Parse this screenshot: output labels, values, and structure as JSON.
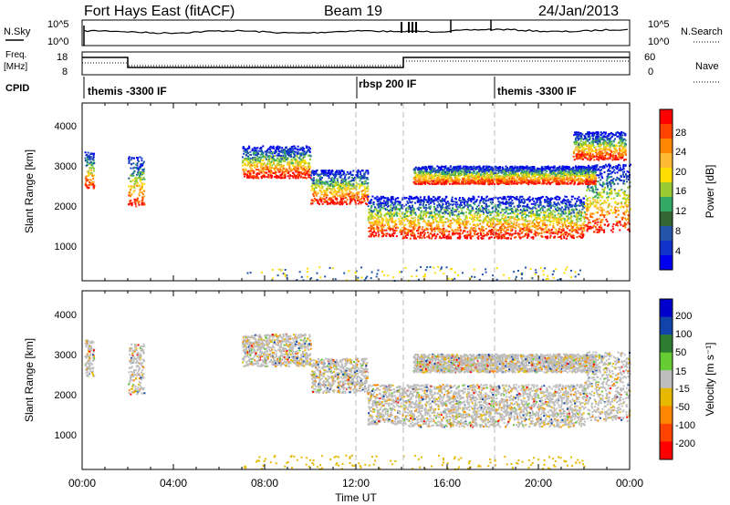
{
  "header": {
    "title": "Fort Hays East (fitACF)",
    "beam": "Beam 19",
    "date": "24/Jan/2013"
  },
  "top_panels": {
    "nsky_label": "N.Sky",
    "nsky_ticks": [
      "10^5",
      "10^0"
    ],
    "nsearch_label": "N.Search",
    "nsearch_ticks": [
      "10^5",
      "10^0"
    ],
    "freq_label_1": "Freq.",
    "freq_label_2": "[MHz]",
    "freq_ticks": [
      "18",
      "8"
    ],
    "nave_label": "Nave",
    "nave_ticks": [
      "60",
      "0"
    ],
    "cpid_label": "CPID",
    "cpid_segments": [
      "themis -3300 IF",
      "rbsp 200 IF",
      "themis -3300 IF"
    ]
  },
  "x_axis": {
    "label": "Time UT",
    "ticks": [
      "00:00",
      "04:00",
      "08:00",
      "12:00",
      "16:00",
      "20:00",
      "00:00"
    ]
  },
  "power_colorbar": {
    "label": "Power [dB]",
    "ticks": [
      "28",
      "24",
      "20",
      "16",
      "12",
      "8",
      "4"
    ],
    "colors": [
      "#ff0000",
      "#ff4400",
      "#ff8800",
      "#ffbb33",
      "#ffdd00",
      "#99cc33",
      "#33aa66",
      "#336633",
      "#2255aa",
      "#1133cc",
      "#0000ee"
    ]
  },
  "velocity_colorbar": {
    "label": "Velocity [m s⁻¹]",
    "ticks": [
      "200",
      "100",
      "50",
      "15",
      "-15",
      "-50",
      "-100",
      "-200"
    ],
    "colors": [
      "#0000cc",
      "#1144aa",
      "#2e7d32",
      "#66cc33",
      "#bdbdbd",
      "#e6b800",
      "#ff8800",
      "#ff4400",
      "#ff0000"
    ]
  },
  "chart_data": [
    {
      "type": "heatmap",
      "title": "Power",
      "ylabel": "Slant Range [km]",
      "yticks": [
        "1000",
        "2000",
        "3000",
        "4000"
      ],
      "xlim": [
        0,
        24
      ],
      "ylim": [
        180,
        4600
      ],
      "bands": [
        {
          "t0": 0.1,
          "t1": 0.5,
          "r_lo": 2500,
          "r_hi": 3400
        },
        {
          "t0": 2.0,
          "t1": 2.7,
          "r_lo": 2050,
          "r_hi": 3300
        },
        {
          "t0": 7.0,
          "t1": 10.0,
          "r_lo": 2750,
          "r_hi": 3550
        },
        {
          "t0": 10.0,
          "t1": 12.5,
          "r_lo": 2100,
          "r_hi": 2950
        },
        {
          "t0": 12.5,
          "t1": 14.0,
          "r_lo": 1300,
          "r_hi": 2300
        },
        {
          "t0": 14.0,
          "t1": 22.0,
          "r_lo": 1250,
          "r_hi": 2300
        },
        {
          "t0": 22.0,
          "t1": 24.0,
          "r_lo": 1400,
          "r_hi": 3100
        },
        {
          "t0": 14.5,
          "t1": 22.5,
          "r_lo": 2600,
          "r_hi": 3050
        },
        {
          "t0": 21.5,
          "t1": 23.8,
          "r_lo": 3200,
          "r_hi": 3900
        }
      ],
      "dashed_time_markers": [
        12.0,
        14.0,
        18.0
      ]
    },
    {
      "type": "heatmap",
      "title": "Velocity",
      "ylabel": "Slant Range [km]",
      "yticks": [
        "1000",
        "2000",
        "3000",
        "4000"
      ],
      "xlim": [
        0,
        24
      ],
      "ylim": [
        180,
        4600
      ],
      "bands": [
        {
          "t0": 0.1,
          "t1": 0.5,
          "r_lo": 2500,
          "r_hi": 3400
        },
        {
          "t0": 2.0,
          "t1": 2.7,
          "r_lo": 2050,
          "r_hi": 3300
        },
        {
          "t0": 7.0,
          "t1": 10.0,
          "r_lo": 2750,
          "r_hi": 3550
        },
        {
          "t0": 10.0,
          "t1": 12.5,
          "r_lo": 2100,
          "r_hi": 2950
        },
        {
          "t0": 12.5,
          "t1": 14.0,
          "r_lo": 1300,
          "r_hi": 2300
        },
        {
          "t0": 14.0,
          "t1": 22.0,
          "r_lo": 1250,
          "r_hi": 2300
        },
        {
          "t0": 22.0,
          "t1": 24.0,
          "r_lo": 1400,
          "r_hi": 3100
        },
        {
          "t0": 14.5,
          "t1": 22.5,
          "r_lo": 2600,
          "r_hi": 3050
        }
      ],
      "dashed_time_markers": [
        12.0,
        14.0,
        18.0
      ]
    }
  ]
}
